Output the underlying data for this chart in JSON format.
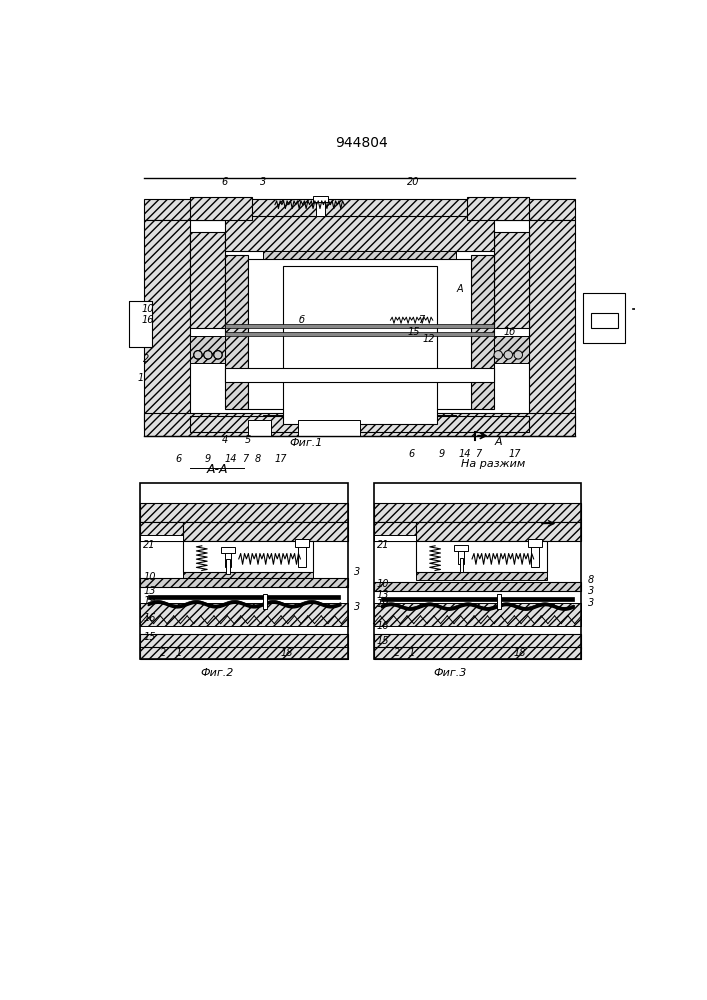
{
  "title": "944804",
  "title_fontsize": 10,
  "background_color": "#ffffff",
  "fig1_caption": "Фиг.1",
  "fig2_caption": "Фиг.2",
  "fig3_caption": "Фиг.3",
  "section_label": "А-А",
  "fig3_label": "На разжим",
  "hatch_density": 4,
  "lw": 0.8
}
